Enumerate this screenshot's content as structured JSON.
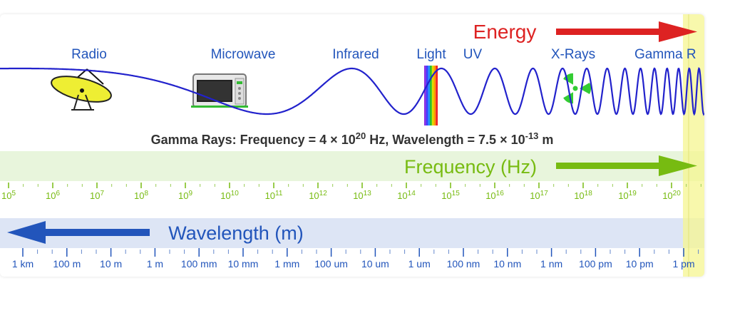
{
  "title": {
    "energy": "Energy",
    "frequency": "Frequency (Hz)",
    "wavelength": "Wavelength (m)"
  },
  "band_labels": [
    {
      "key": "radio",
      "text": "Radio"
    },
    {
      "key": "microwave",
      "text": "Microwave"
    },
    {
      "key": "infrared",
      "text": "Infrared"
    },
    {
      "key": "light",
      "text": "Light"
    },
    {
      "key": "uv",
      "text": "UV"
    },
    {
      "key": "xrays",
      "text": "X-Rays"
    },
    {
      "key": "gamma",
      "text": "Gamma R"
    }
  ],
  "readout": {
    "prefix": "Gamma Rays: Frequency = 4 × 10",
    "freq_exp": "20",
    "mid": " Hz, Wavelength = 7.5 × 10",
    "wl_exp": "-13",
    "suffix": " m"
  },
  "frequency_ticks": [
    {
      "base": "10",
      "exp": "5"
    },
    {
      "base": "10",
      "exp": "6"
    },
    {
      "base": "10",
      "exp": "7"
    },
    {
      "base": "10",
      "exp": "8"
    },
    {
      "base": "10",
      "exp": "9"
    },
    {
      "base": "10",
      "exp": "10"
    },
    {
      "base": "10",
      "exp": "11"
    },
    {
      "base": "10",
      "exp": "12"
    },
    {
      "base": "10",
      "exp": "13"
    },
    {
      "base": "10",
      "exp": "14"
    },
    {
      "base": "10",
      "exp": "15"
    },
    {
      "base": "10",
      "exp": "16"
    },
    {
      "base": "10",
      "exp": "17"
    },
    {
      "base": "10",
      "exp": "18"
    },
    {
      "base": "10",
      "exp": "19"
    },
    {
      "base": "10",
      "exp": "20"
    }
  ],
  "wavelength_ticks": [
    "1 km",
    "100 m",
    "10 m",
    "1 m",
    "100 mm",
    "10 mm",
    "1 mm",
    "100 um",
    "10 um",
    "1 um",
    "100 nm",
    "10 nm",
    "1 nm",
    "100 pm",
    "10 pm",
    "1 pm"
  ],
  "colors": {
    "wave": "#2222cc",
    "energy": "#dd2222",
    "frequency": "#77bb11",
    "frequency_band": "#e8f5dc",
    "wavelength": "#2255bb",
    "wavelength_band": "#dde5f5",
    "highlight": "#f5f590",
    "text_dark": "#333333"
  },
  "selected_band": "gamma"
}
